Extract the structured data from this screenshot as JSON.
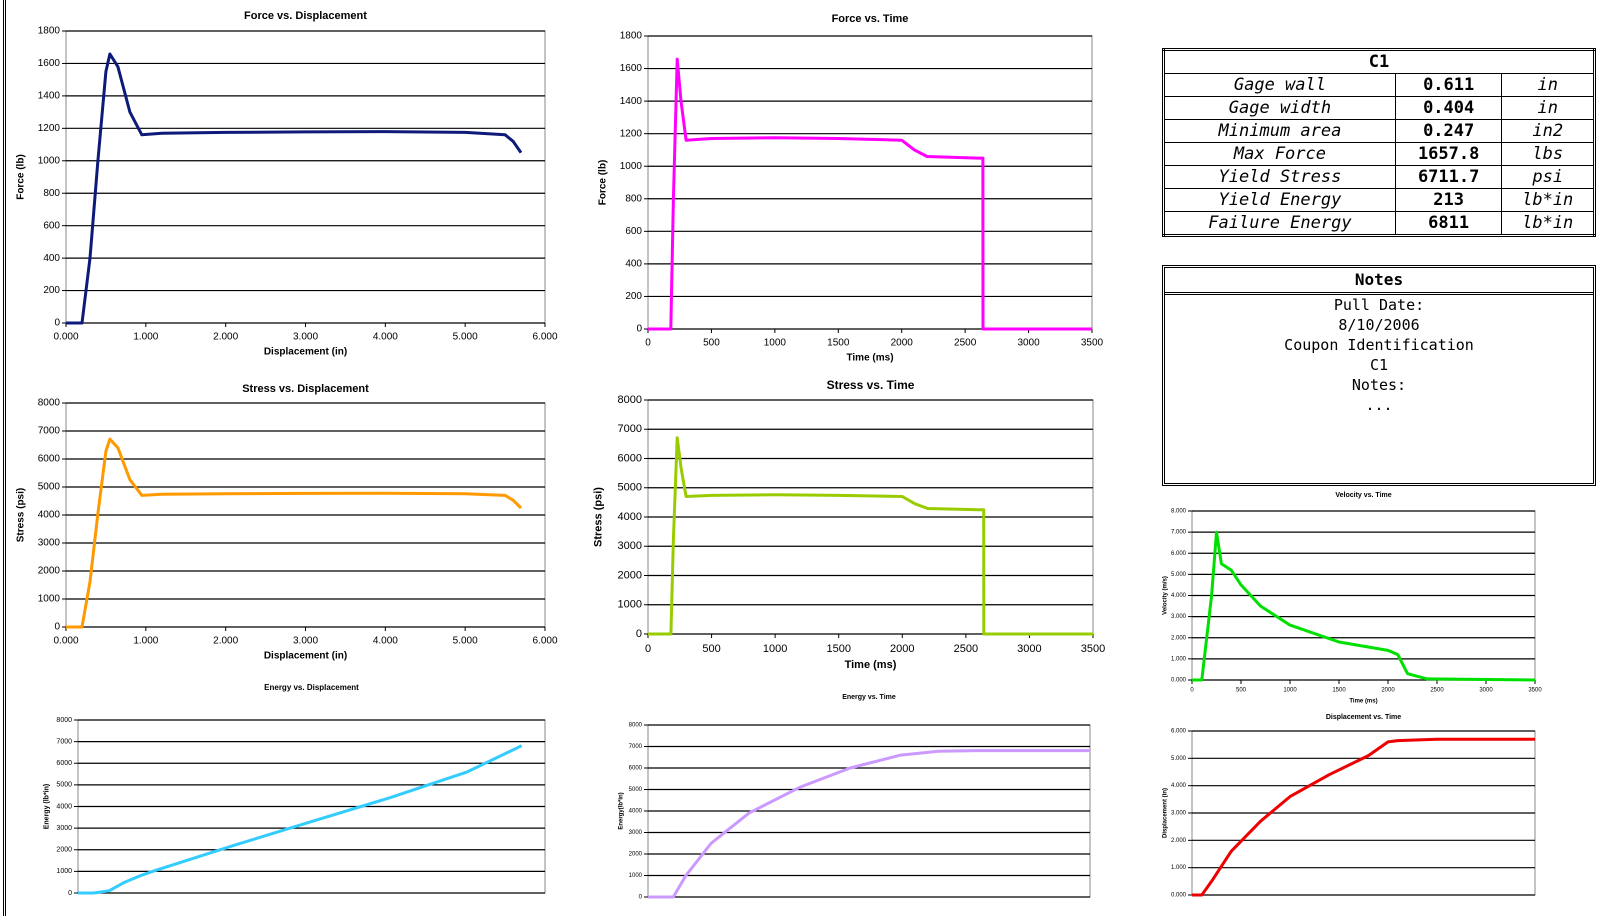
{
  "chart_data": [
    {
      "type": "line",
      "title": "Force vs. Displacement",
      "x_label": "Displacement (in)",
      "y_label": "Force (lb)",
      "color": "#0d1a7a",
      "x": [
        0,
        0.2,
        0.3,
        0.4,
        0.5,
        0.55,
        0.65,
        0.8,
        0.95,
        1.2,
        2,
        3,
        4,
        5,
        5.5,
        5.6,
        5.7
      ],
      "values": [
        0,
        0,
        400,
        1000,
        1550,
        1658,
        1580,
        1300,
        1160,
        1170,
        1175,
        1178,
        1180,
        1175,
        1160,
        1120,
        1050
      ],
      "xlim": [
        0,
        6
      ],
      "xticks": [
        {
          "value": 0,
          "label": "0.000"
        },
        {
          "value": 1,
          "label": "1.000"
        },
        {
          "value": 2,
          "label": "2.000"
        },
        {
          "value": 3,
          "label": "3.000"
        },
        {
          "value": 4,
          "label": "4.000"
        },
        {
          "value": 5,
          "label": "5.000"
        },
        {
          "value": 6,
          "label": "6.000"
        }
      ],
      "ylim": [
        0,
        1800
      ],
      "yticks": [
        0,
        200,
        400,
        600,
        800,
        1000,
        1200,
        1400,
        1600,
        1800
      ],
      "grid": true
    },
    {
      "type": "line",
      "title": "Force vs. Time",
      "x_label": "Time (ms)",
      "y_label": "Force (lb)",
      "color": "#ff00ff",
      "x": [
        0,
        180,
        200,
        230,
        260,
        300,
        500,
        1000,
        1500,
        2000,
        2100,
        2200,
        2600,
        2640,
        2641,
        3500
      ],
      "values": [
        0,
        0,
        800,
        1658,
        1400,
        1160,
        1170,
        1175,
        1170,
        1160,
        1100,
        1060,
        1050,
        1050,
        0,
        0
      ],
      "xlim": [
        0,
        3500
      ],
      "xticks": [
        0,
        500,
        1000,
        1500,
        2000,
        2500,
        3000,
        3500
      ],
      "ylim": [
        0,
        1800
      ],
      "yticks": [
        0,
        200,
        400,
        600,
        800,
        1000,
        1200,
        1400,
        1600,
        1800
      ],
      "grid": true
    },
    {
      "type": "line",
      "title": "Stress vs. Displacement",
      "x_label": "Displacement (in)",
      "y_label": "Stress (psi)",
      "color": "#ff9900",
      "x": [
        0,
        0.2,
        0.3,
        0.4,
        0.5,
        0.55,
        0.65,
        0.8,
        0.95,
        1.2,
        2,
        3,
        4,
        5,
        5.5,
        5.6,
        5.7
      ],
      "values": [
        0,
        0,
        1620,
        4050,
        6280,
        6712,
        6400,
        5260,
        4700,
        4740,
        4760,
        4770,
        4780,
        4760,
        4700,
        4530,
        4250
      ],
      "xlim": [
        0,
        6
      ],
      "xticks": [
        {
          "value": 0,
          "label": "0.000"
        },
        {
          "value": 1,
          "label": "1.000"
        },
        {
          "value": 2,
          "label": "2.000"
        },
        {
          "value": 3,
          "label": "3.000"
        },
        {
          "value": 4,
          "label": "4.000"
        },
        {
          "value": 5,
          "label": "5.000"
        },
        {
          "value": 6,
          "label": "6.000"
        }
      ],
      "ylim": [
        0,
        8000
      ],
      "yticks": [
        0,
        1000,
        2000,
        3000,
        4000,
        5000,
        6000,
        7000,
        8000
      ],
      "grid": true
    },
    {
      "type": "line",
      "title": "Stress vs. Time",
      "x_label": "Time (ms)",
      "y_label": "Stress (psi)",
      "color": "#99cc00",
      "x": [
        0,
        180,
        200,
        230,
        260,
        300,
        500,
        1000,
        1500,
        2000,
        2100,
        2200,
        2600,
        2640,
        2641,
        3500
      ],
      "values": [
        0,
        0,
        3240,
        6712,
        5670,
        4700,
        4740,
        4760,
        4740,
        4700,
        4450,
        4290,
        4250,
        4250,
        0,
        0
      ],
      "xlim": [
        0,
        3500
      ],
      "xticks": [
        0,
        500,
        1000,
        1500,
        2000,
        2500,
        3000,
        3500
      ],
      "ylim": [
        0,
        8000
      ],
      "yticks": [
        0,
        1000,
        2000,
        3000,
        4000,
        5000,
        6000,
        7000,
        8000
      ],
      "grid": true
    },
    {
      "type": "line",
      "title": "Energy vs. Displacement",
      "y_label": "Energy (lb*in)",
      "color": "#33ccff",
      "x": [
        0,
        0.2,
        0.4,
        0.6,
        0.8,
        1,
        2,
        3,
        4,
        5,
        5.7
      ],
      "values": [
        0,
        0,
        100,
        500,
        800,
        1050,
        2200,
        3300,
        4400,
        5600,
        6811
      ],
      "xlim": [
        0,
        6
      ],
      "ylim": [
        0,
        8000
      ],
      "yticks": [
        0,
        1000,
        2000,
        3000,
        4000,
        5000,
        6000,
        7000,
        8000
      ],
      "grid": true
    },
    {
      "type": "line",
      "title": "Energy vs. Time",
      "y_label": "Energy(lb*in)",
      "color": "#cc99ff",
      "x": [
        0,
        200,
        300,
        500,
        800,
        1200,
        1600,
        2000,
        2300,
        2600,
        3500
      ],
      "values": [
        0,
        0,
        1000,
        2500,
        3900,
        5100,
        6000,
        6600,
        6780,
        6811,
        6811
      ],
      "xlim": [
        0,
        3500
      ],
      "ylim": [
        0,
        8000
      ],
      "yticks": [
        0,
        1000,
        2000,
        3000,
        4000,
        5000,
        6000,
        7000,
        8000
      ],
      "grid": true
    },
    {
      "type": "line",
      "title": "Velocity vs. Time",
      "x_label": "Time (ms)",
      "y_label": "Velocity (m/s)",
      "color": "#00e000",
      "x": [
        0,
        100,
        200,
        250,
        300,
        400,
        500,
        700,
        1000,
        1500,
        2000,
        2100,
        2200,
        2400,
        3500
      ],
      "values": [
        0,
        0,
        4,
        7,
        5.5,
        5.2,
        4.5,
        3.5,
        2.6,
        1.8,
        1.4,
        1.2,
        0.3,
        0.05,
        0
      ],
      "xlim": [
        0,
        3500
      ],
      "xticks": [
        0,
        500,
        1000,
        1500,
        2000,
        2500,
        3000,
        3500
      ],
      "ylim": [
        0,
        8
      ],
      "yticks": [
        {
          "value": 0,
          "label": "0.000"
        },
        {
          "value": 1,
          "label": "1.000"
        },
        {
          "value": 2,
          "label": "2.000"
        },
        {
          "value": 3,
          "label": "3.000"
        },
        {
          "value": 4,
          "label": "4.000"
        },
        {
          "value": 5,
          "label": "5.000"
        },
        {
          "value": 6,
          "label": "6.000"
        },
        {
          "value": 7,
          "label": "7.000"
        },
        {
          "value": 8,
          "label": "8.000"
        }
      ],
      "grid": true
    },
    {
      "type": "line",
      "title": "Displacement vs. Time",
      "y_label": "Displacement (in)",
      "color": "#ee0000",
      "x": [
        0,
        100,
        200,
        400,
        700,
        1000,
        1400,
        1800,
        2000,
        2100,
        2500,
        3500
      ],
      "values": [
        0,
        0,
        0.5,
        1.6,
        2.7,
        3.6,
        4.4,
        5.1,
        5.6,
        5.65,
        5.7,
        5.7
      ],
      "xlim": [
        0,
        3500
      ],
      "ylim": [
        0,
        6
      ],
      "yticks": [
        {
          "value": 0,
          "label": "0.000"
        },
        {
          "value": 1,
          "label": "1.000"
        },
        {
          "value": 2,
          "label": "2.000"
        },
        {
          "value": 3,
          "label": "3.000"
        },
        {
          "value": 4,
          "label": "4.000"
        },
        {
          "value": 5,
          "label": "5.000"
        },
        {
          "value": 6,
          "label": "6.000"
        }
      ],
      "grid": true
    }
  ],
  "table": {
    "title": "C1",
    "rows": [
      [
        "Gage wall",
        "0.611",
        "in"
      ],
      [
        "Gage width",
        "0.404",
        "in"
      ],
      [
        "Minimum area",
        "0.247",
        "in2"
      ],
      [
        "Max Force",
        "1657.8",
        "lbs"
      ],
      [
        "Yield Stress",
        "6711.7",
        "psi"
      ],
      [
        "Yield Energy",
        "213",
        "lb*in"
      ],
      [
        "Failure Energy",
        "6811",
        "lb*in"
      ]
    ]
  },
  "notes": {
    "title": "Notes",
    "lines": [
      "Pull Date:",
      "8/10/2006",
      "Coupon Identification",
      "C1",
      "Notes:",
      "..."
    ]
  }
}
